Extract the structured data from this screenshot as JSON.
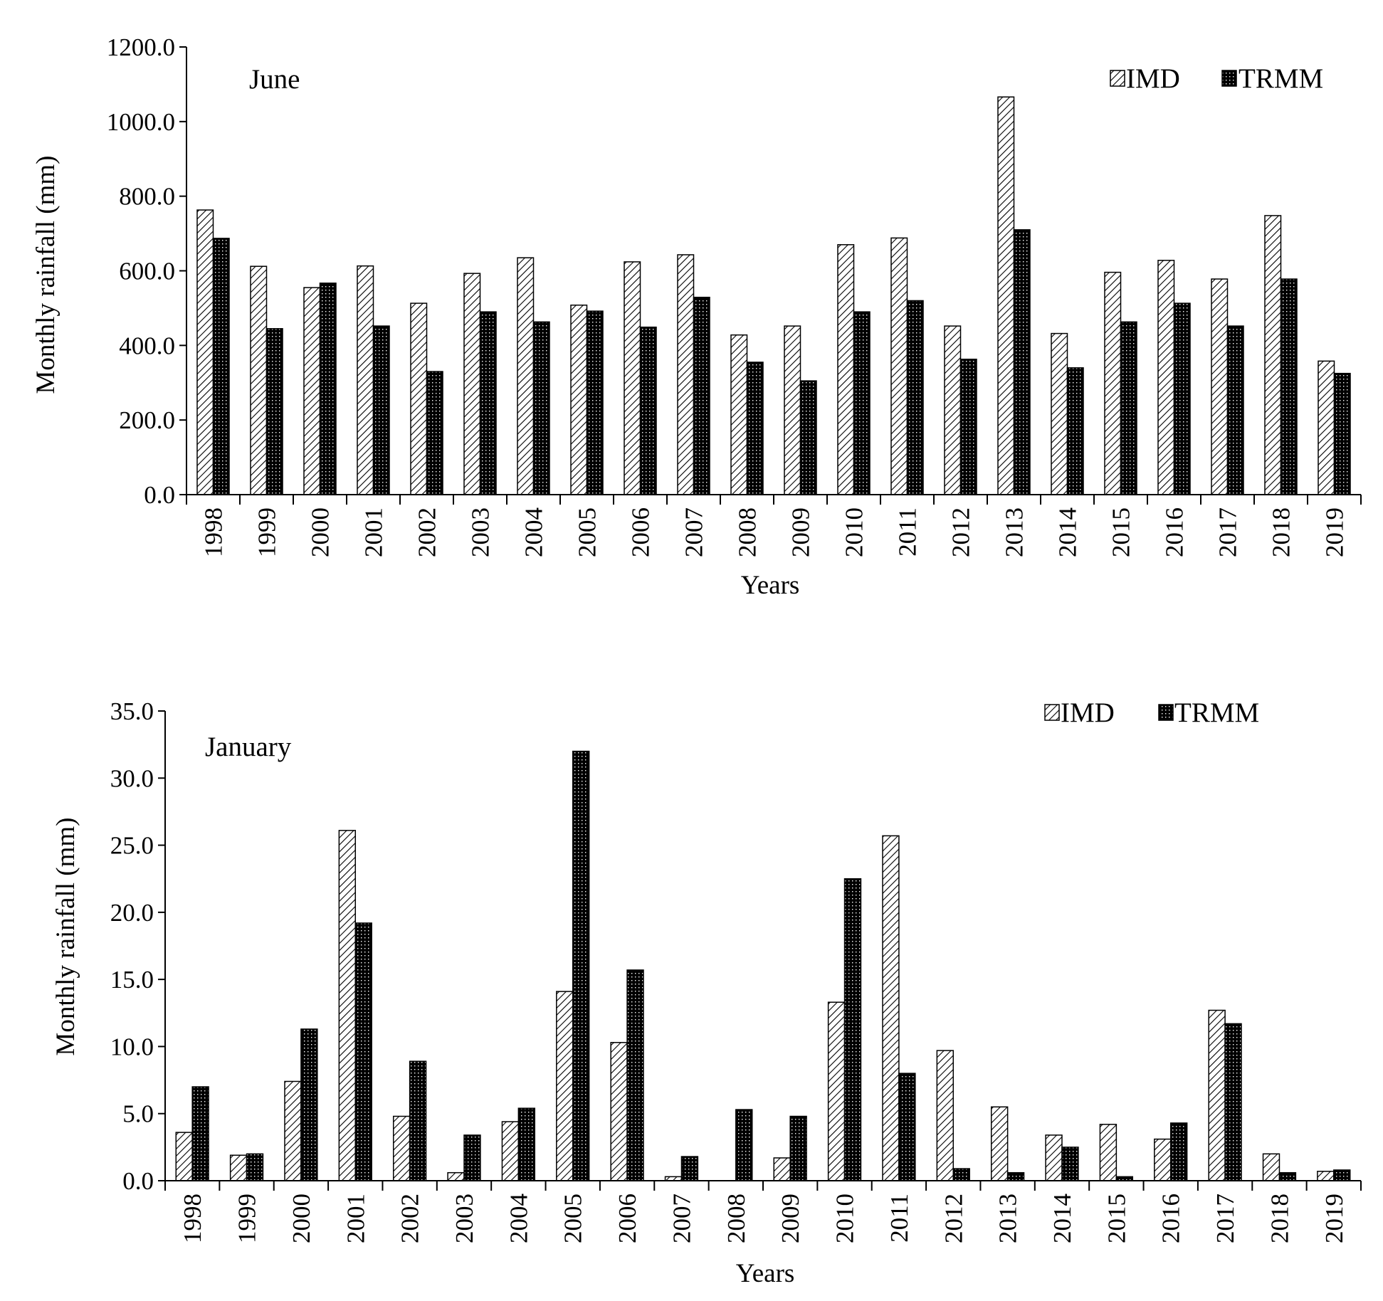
{
  "chart_data": [
    {
      "type": "bar",
      "panel_label": "June",
      "xlabel": "Years",
      "ylabel": "Monthly rainfall (mm)",
      "ylim": [
        0,
        1200
      ],
      "yticks": [
        "0.0",
        "200.0",
        "400.0",
        "600.0",
        "800.0",
        "1000.0",
        "1200.0"
      ],
      "legend_position": "top-right",
      "grid": false,
      "categories": [
        "1998",
        "1999",
        "2000",
        "2001",
        "2002",
        "2003",
        "2004",
        "2005",
        "2006",
        "2007",
        "2008",
        "2009",
        "2010",
        "2011",
        "2012",
        "2013",
        "2014",
        "2015",
        "2016",
        "2017",
        "2018",
        "2019"
      ],
      "series": [
        {
          "name": "IMD",
          "pattern": "diagonal-hatch",
          "values": [
            763,
            612,
            555,
            613,
            513,
            593,
            635,
            508,
            624,
            643,
            428,
            452,
            670,
            688,
            452,
            1066,
            432,
            596,
            628,
            578,
            748,
            358
          ]
        },
        {
          "name": "TRMM",
          "pattern": "dotted-dark",
          "values": [
            687,
            445,
            567,
            452,
            330,
            490,
            463,
            492,
            449,
            529,
            355,
            305,
            490,
            520,
            363,
            710,
            340,
            463,
            513,
            452,
            578,
            325
          ]
        }
      ]
    },
    {
      "type": "bar",
      "panel_label": "January",
      "xlabel": "Years",
      "ylabel": "Monthly rainfall (mm)",
      "ylim": [
        0,
        35
      ],
      "yticks": [
        "0.0",
        "5.0",
        "10.0",
        "15.0",
        "20.0",
        "25.0",
        "30.0",
        "35.0"
      ],
      "legend_position": "top-right",
      "grid": false,
      "categories": [
        "1998",
        "1999",
        "2000",
        "2001",
        "2002",
        "2003",
        "2004",
        "2005",
        "2006",
        "2007",
        "2008",
        "2009",
        "2010",
        "2011",
        "2012",
        "2013",
        "2014",
        "2015",
        "2016",
        "2017",
        "2018",
        "2019"
      ],
      "series": [
        {
          "name": "IMD",
          "pattern": "diagonal-hatch",
          "values": [
            3.6,
            1.9,
            7.4,
            26.1,
            4.8,
            0.6,
            4.4,
            14.1,
            10.3,
            0.3,
            0.0,
            1.7,
            13.3,
            25.7,
            9.7,
            5.5,
            3.4,
            4.2,
            3.1,
            12.7,
            2.0,
            0.7
          ]
        },
        {
          "name": "TRMM",
          "pattern": "dotted-dark",
          "values": [
            7.0,
            2.0,
            11.3,
            19.2,
            8.9,
            3.4,
            5.4,
            32.0,
            15.7,
            1.8,
            5.3,
            4.8,
            22.5,
            8.0,
            0.9,
            0.6,
            2.5,
            0.3,
            4.3,
            11.7,
            0.6,
            0.8
          ]
        }
      ]
    }
  ]
}
